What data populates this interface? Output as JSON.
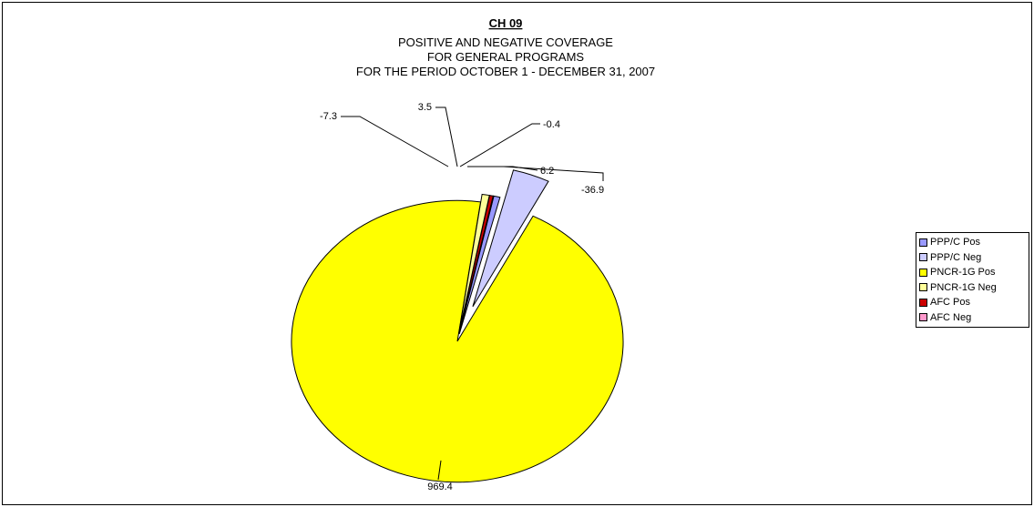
{
  "chart_data": {
    "type": "pie",
    "title": "CH 09",
    "subtitle_lines": [
      "POSITIVE AND NEGATIVE COVERAGE",
      "FOR  GENERAL PROGRAMS",
      "FOR THE PERIOD OCTOBER 1 - DECEMBER 31, 2007"
    ],
    "legend_position": "right",
    "slices": [
      {
        "name": "PPP/C Pos",
        "value": 6.2,
        "label": "6.2",
        "color": "#9999ff"
      },
      {
        "name": "PPP/C Neg",
        "value": -36.9,
        "label": "-36.9",
        "color": "#ccccff"
      },
      {
        "name": "PNCR-1G Pos",
        "value": 969.4,
        "label": "969.4",
        "color": "#ffff00"
      },
      {
        "name": "PNCR-1G Neg",
        "value": -7.3,
        "label": "-7.3",
        "color": "#ffff99"
      },
      {
        "name": "AFC Pos",
        "value": 3.5,
        "label": "3.5",
        "color": "#cc0000"
      },
      {
        "name": "AFC Neg",
        "value": -0.4,
        "label": "-0.4",
        "color": "#ff99cc"
      }
    ]
  }
}
